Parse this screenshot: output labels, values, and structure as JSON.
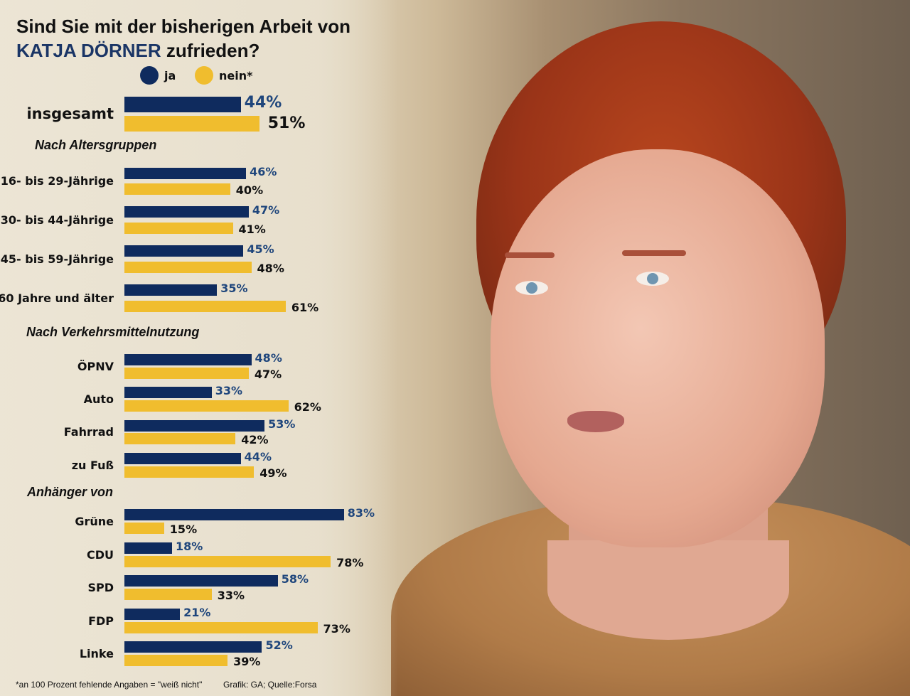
{
  "title_line1": "Sind Sie mit der bisherigen Arbeit von",
  "title_name": "KATJA DÖRNER",
  "title_rest": "zufrieden?",
  "colors": {
    "ja": "#0f2b5e",
    "nein": "#f0bd2e",
    "ja_text": "#1f467c",
    "nein_text": "#111111"
  },
  "footnote": "*an 100 Prozent fehlende Angaben = \"weiß nicht\"",
  "source": "Grafik: GA; Quelle:Forsa",
  "chart_data": {
    "type": "bar",
    "orientation": "horizontal",
    "title": "Sind Sie mit der bisherigen Arbeit von KATJA DÖRNER zufrieden?",
    "unit": "%",
    "legend": [
      "ja",
      "nein*"
    ],
    "legend_position": "top",
    "sections": [
      "Nach Altersgruppen",
      "Nach Verkehrsmittelnutzung",
      "Anhänger von"
    ],
    "rows": [
      {
        "label": "insgesamt",
        "section": null,
        "ja": 44,
        "nein": 51
      },
      {
        "label": "16- bis 29-Jährige",
        "section": 0,
        "ja": 46,
        "nein": 40
      },
      {
        "label": "30- bis 44-Jährige",
        "section": 0,
        "ja": 47,
        "nein": 41
      },
      {
        "label": "45- bis 59-Jährige",
        "section": 0,
        "ja": 45,
        "nein": 48
      },
      {
        "label": "60 Jahre und älter",
        "section": 0,
        "ja": 35,
        "nein": 61
      },
      {
        "label": "ÖPNV",
        "section": 1,
        "ja": 48,
        "nein": 47
      },
      {
        "label": "Auto",
        "section": 1,
        "ja": 33,
        "nein": 62
      },
      {
        "label": "Fahrrad",
        "section": 1,
        "ja": 53,
        "nein": 42
      },
      {
        "label": "zu Fuß",
        "section": 1,
        "ja": 44,
        "nein": 49
      },
      {
        "label": "Grüne",
        "section": 2,
        "ja": 83,
        "nein": 15
      },
      {
        "label": "CDU",
        "section": 2,
        "ja": 18,
        "nein": 78
      },
      {
        "label": "SPD",
        "section": 2,
        "ja": 58,
        "nein": 33
      },
      {
        "label": "FDP",
        "section": 2,
        "ja": 21,
        "nein": 73
      },
      {
        "label": "Linke",
        "section": 2,
        "ja": 52,
        "nein": 39
      }
    ]
  }
}
